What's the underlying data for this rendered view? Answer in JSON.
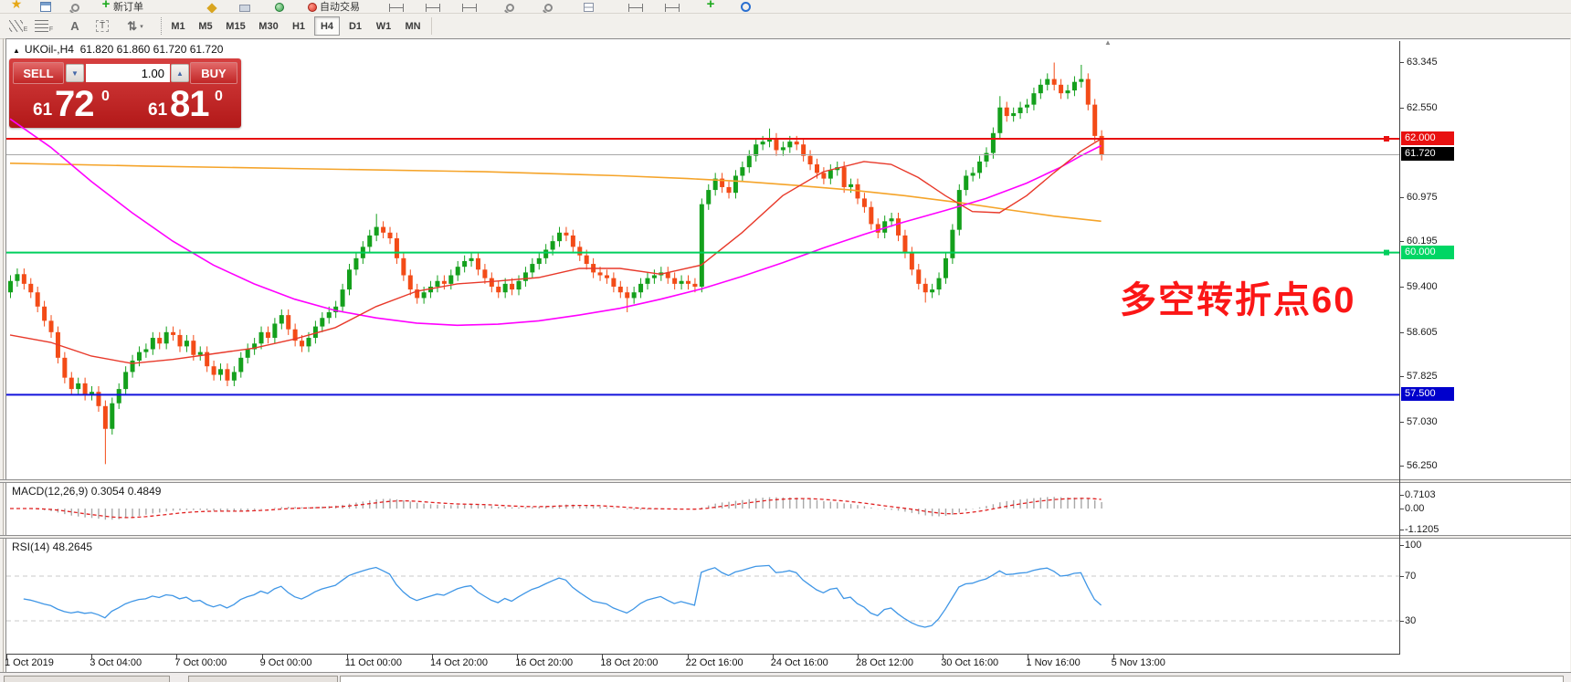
{
  "toolbar_top": {
    "new_order_label": "新订单",
    "autotrading_label": "自动交易",
    "icons": [
      {
        "name": "favorites-star-icon",
        "kind": "star"
      },
      {
        "name": "new-chart-window-icon",
        "kind": "box"
      },
      {
        "name": "search-icon",
        "kind": "mag"
      },
      {
        "name": "new-order-icon",
        "kind": "plus"
      },
      {
        "name": "history-center-icon",
        "kind": "diamond"
      },
      {
        "name": "market-watch-icon",
        "kind": "folder"
      },
      {
        "name": "navigator-icon",
        "kind": "globe"
      },
      {
        "name": "autotrading-icon",
        "kind": "red"
      },
      {
        "name": "bar-chart-icon",
        "kind": "hline"
      },
      {
        "name": "candlestick-chart-icon",
        "kind": "hline"
      },
      {
        "name": "line-chart-icon",
        "kind": "hline"
      },
      {
        "name": "zoom-in-icon",
        "kind": "mag"
      },
      {
        "name": "zoom-out-icon",
        "kind": "mag"
      },
      {
        "name": "tile-windows-icon",
        "kind": "tile"
      },
      {
        "name": "crosshair-icon",
        "kind": "hline"
      },
      {
        "name": "shift-end-icon",
        "kind": "hline"
      },
      {
        "name": "add-indicator-icon",
        "kind": "plus"
      },
      {
        "name": "help-icon",
        "kind": "ring"
      }
    ]
  },
  "toolbar_tf": {
    "tools": [
      {
        "name": "equidistant-channel-tool",
        "kind": "chan",
        "sub": "E"
      },
      {
        "name": "fibonacci-retracement-tool",
        "kind": "fib",
        "sub": "F"
      },
      {
        "name": "text-label-tool",
        "kind": "glyph",
        "glyph": "A"
      },
      {
        "name": "text-box-tool",
        "kind": "tbox",
        "glyph": "T"
      },
      {
        "name": "arrow-objects-tool",
        "kind": "glyph",
        "glyph": "⇅",
        "caret": "▾"
      }
    ],
    "timeframes": [
      {
        "label": "M1",
        "active": false
      },
      {
        "label": "M5",
        "active": false
      },
      {
        "label": "M15",
        "active": false
      },
      {
        "label": "M30",
        "active": false
      },
      {
        "label": "H1",
        "active": false
      },
      {
        "label": "H4",
        "active": true
      },
      {
        "label": "D1",
        "active": false
      },
      {
        "label": "W1",
        "active": false
      },
      {
        "label": "MN",
        "active": false
      }
    ]
  },
  "chart_header": {
    "collapse_marker": "▲",
    "symbol_period": "UKOil-,H4",
    "ohlc": "61.820 61.860 61.720 61.720"
  },
  "trade_panel": {
    "sell_label": "SELL",
    "buy_label": "BUY",
    "volume": "1.00",
    "spin_down": "▼",
    "spin_up": "▲",
    "sell_small": "61",
    "sell_big": "72",
    "sell_sup": "0",
    "buy_small": "61",
    "buy_big": "81",
    "buy_sup": "0"
  },
  "chart_data": {
    "type": "candlestick",
    "symbol": "UKOil-",
    "period": "H4",
    "price_axis_ticks": [
      "63.345",
      "62.550",
      "60.975",
      "60.195",
      "59.400",
      "58.605",
      "57.825",
      "57.030",
      "56.250"
    ],
    "hlines": [
      {
        "name": "resistance-line",
        "price": 62.0,
        "label": "62.000",
        "color": "#e81010",
        "badge_bg": "#e81010",
        "width": 2,
        "handle": true
      },
      {
        "name": "current-price-line",
        "price": 61.72,
        "label": "61.720",
        "color": "#a8a8a8",
        "badge_bg": "#000000",
        "width": 1,
        "handle": false
      },
      {
        "name": "pivot-line",
        "price": 60.0,
        "label": "60.000",
        "color": "#00cf5d",
        "badge_bg": "#00d664",
        "width": 2,
        "handle": true
      },
      {
        "name": "support-line",
        "price": 57.5,
        "label": "57.500",
        "color": "#1313dc",
        "badge_bg": "#0000cc",
        "width": 2,
        "handle": false
      }
    ],
    "open_first": 59.3,
    "closes": [
      59.5,
      59.62,
      59.45,
      59.3,
      59.05,
      58.8,
      58.6,
      58.15,
      57.8,
      57.6,
      57.7,
      57.5,
      57.55,
      57.3,
      56.9,
      57.35,
      57.6,
      57.9,
      58.1,
      58.25,
      58.3,
      58.5,
      58.4,
      58.6,
      58.55,
      58.35,
      58.45,
      58.2,
      58.25,
      58.0,
      57.85,
      57.95,
      57.75,
      57.9,
      58.15,
      58.3,
      58.4,
      58.6,
      58.5,
      58.75,
      58.9,
      58.65,
      58.45,
      58.35,
      58.5,
      58.7,
      58.85,
      58.95,
      59.05,
      59.35,
      59.7,
      59.9,
      60.1,
      60.3,
      60.45,
      60.35,
      60.25,
      59.9,
      59.6,
      59.35,
      59.2,
      59.3,
      59.4,
      59.5,
      59.45,
      59.6,
      59.75,
      59.85,
      59.9,
      59.7,
      59.55,
      59.4,
      59.3,
      59.45,
      59.35,
      59.5,
      59.65,
      59.8,
      59.9,
      60.05,
      60.2,
      60.35,
      60.3,
      60.1,
      59.95,
      59.8,
      59.65,
      59.6,
      59.55,
      59.4,
      59.3,
      59.2,
      59.3,
      59.45,
      59.55,
      59.6,
      59.65,
      59.55,
      59.45,
      59.5,
      59.45,
      59.4,
      60.85,
      61.1,
      61.3,
      61.15,
      61.05,
      61.35,
      61.5,
      61.7,
      61.9,
      61.95,
      62.0,
      61.8,
      61.85,
      61.95,
      61.9,
      61.7,
      61.55,
      61.4,
      61.3,
      61.45,
      61.5,
      61.15,
      61.2,
      60.95,
      60.8,
      60.5,
      60.35,
      60.55,
      60.6,
      60.3,
      60.0,
      59.7,
      59.45,
      59.3,
      59.35,
      59.55,
      59.9,
      60.4,
      61.1,
      61.35,
      61.4,
      61.6,
      61.75,
      62.1,
      62.55,
      62.4,
      62.45,
      62.55,
      62.6,
      62.8,
      62.95,
      63.05,
      62.95,
      62.8,
      62.85,
      63.0,
      63.05,
      62.6,
      62.05,
      61.72
    ],
    "default_wick": 0.1,
    "high_overrides": {
      "54": 60.68,
      "112": 62.18,
      "146": 62.75,
      "154": 63.34,
      "158": 63.3
    },
    "low_overrides": {
      "14": 56.28,
      "91": 58.95,
      "135": 59.12
    },
    "up_color": "#14a01c",
    "down_color": "#f34b17",
    "ma_lines": [
      {
        "name": "ma-slow-orange",
        "color": "#f5a42a",
        "width": 1.6,
        "points": [
          [
            0,
            61.57
          ],
          [
            20,
            61.52
          ],
          [
            45,
            61.47
          ],
          [
            70,
            61.42
          ],
          [
            90,
            61.35
          ],
          [
            100,
            61.3
          ],
          [
            108,
            61.25
          ],
          [
            116,
            61.18
          ],
          [
            124,
            61.1
          ],
          [
            132,
            61.0
          ],
          [
            140,
            60.88
          ],
          [
            148,
            60.74
          ],
          [
            154,
            60.64
          ],
          [
            161,
            60.55
          ]
        ]
      },
      {
        "name": "ma-mid-magenta",
        "color": "#ff00ff",
        "width": 1.6,
        "points": [
          [
            0,
            62.35
          ],
          [
            6,
            61.85
          ],
          [
            12,
            61.25
          ],
          [
            18,
            60.7
          ],
          [
            24,
            60.2
          ],
          [
            30,
            59.78
          ],
          [
            36,
            59.45
          ],
          [
            42,
            59.18
          ],
          [
            48,
            58.98
          ],
          [
            54,
            58.85
          ],
          [
            60,
            58.76
          ],
          [
            66,
            58.72
          ],
          [
            72,
            58.74
          ],
          [
            78,
            58.8
          ],
          [
            84,
            58.9
          ],
          [
            90,
            59.02
          ],
          [
            96,
            59.18
          ],
          [
            102,
            59.36
          ],
          [
            108,
            59.58
          ],
          [
            114,
            59.82
          ],
          [
            120,
            60.08
          ],
          [
            126,
            60.32
          ],
          [
            132,
            60.54
          ],
          [
            138,
            60.74
          ],
          [
            144,
            60.95
          ],
          [
            150,
            61.22
          ],
          [
            155,
            61.5
          ],
          [
            158,
            61.7
          ],
          [
            161,
            61.88
          ]
        ]
      },
      {
        "name": "ma-fast-red",
        "color": "#e8392a",
        "width": 1.4,
        "points": [
          [
            0,
            58.55
          ],
          [
            6,
            58.42
          ],
          [
            12,
            58.18
          ],
          [
            18,
            58.05
          ],
          [
            24,
            58.12
          ],
          [
            30,
            58.22
          ],
          [
            36,
            58.32
          ],
          [
            42,
            58.48
          ],
          [
            48,
            58.68
          ],
          [
            54,
            59.05
          ],
          [
            60,
            59.32
          ],
          [
            66,
            59.45
          ],
          [
            72,
            59.5
          ],
          [
            78,
            59.56
          ],
          [
            84,
            59.72
          ],
          [
            90,
            59.72
          ],
          [
            96,
            59.62
          ],
          [
            102,
            59.78
          ],
          [
            108,
            60.35
          ],
          [
            114,
            61.0
          ],
          [
            120,
            61.42
          ],
          [
            126,
            61.6
          ],
          [
            130,
            61.55
          ],
          [
            134,
            61.32
          ],
          [
            138,
            61.0
          ],
          [
            142,
            60.72
          ],
          [
            146,
            60.7
          ],
          [
            150,
            61.0
          ],
          [
            154,
            61.4
          ],
          [
            158,
            61.78
          ],
          [
            161,
            62.0
          ]
        ]
      }
    ],
    "annotation": {
      "text": "多空转折点60",
      "color": "#fb1616"
    }
  },
  "macd": {
    "label": "MACD(12,26,9) 0.3054 0.4849",
    "ticks": [
      {
        "label": "0.7103",
        "value": 0.7103
      },
      {
        "label": "0.00",
        "value": 0
      },
      {
        "label": "-1.1205",
        "value": -1.1205
      }
    ],
    "hist_color": "#a8a8a8",
    "signal_color": "#e02020"
  },
  "rsi": {
    "label": "RSI(14) 48.2645",
    "ticks": [
      {
        "label": "100",
        "value": 100
      },
      {
        "label": "70",
        "value": 70
      },
      {
        "label": "30",
        "value": 30
      }
    ],
    "levels": [
      70,
      30
    ],
    "line_color": "#3f96e6",
    "level_color": "#c8c8c8"
  },
  "time_axis": {
    "labels": [
      "1 Oct 2019",
      "3 Oct 04:00",
      "7 Oct 00:00",
      "9 Oct 00:00",
      "11 Oct 00:00",
      "14 Oct 20:00",
      "16 Oct 20:00",
      "18 Oct 20:00",
      "22 Oct 16:00",
      "24 Oct 16:00",
      "28 Oct 12:00",
      "30 Oct 16:00",
      "1 Nov 16:00",
      "5 Nov 13:00"
    ]
  }
}
